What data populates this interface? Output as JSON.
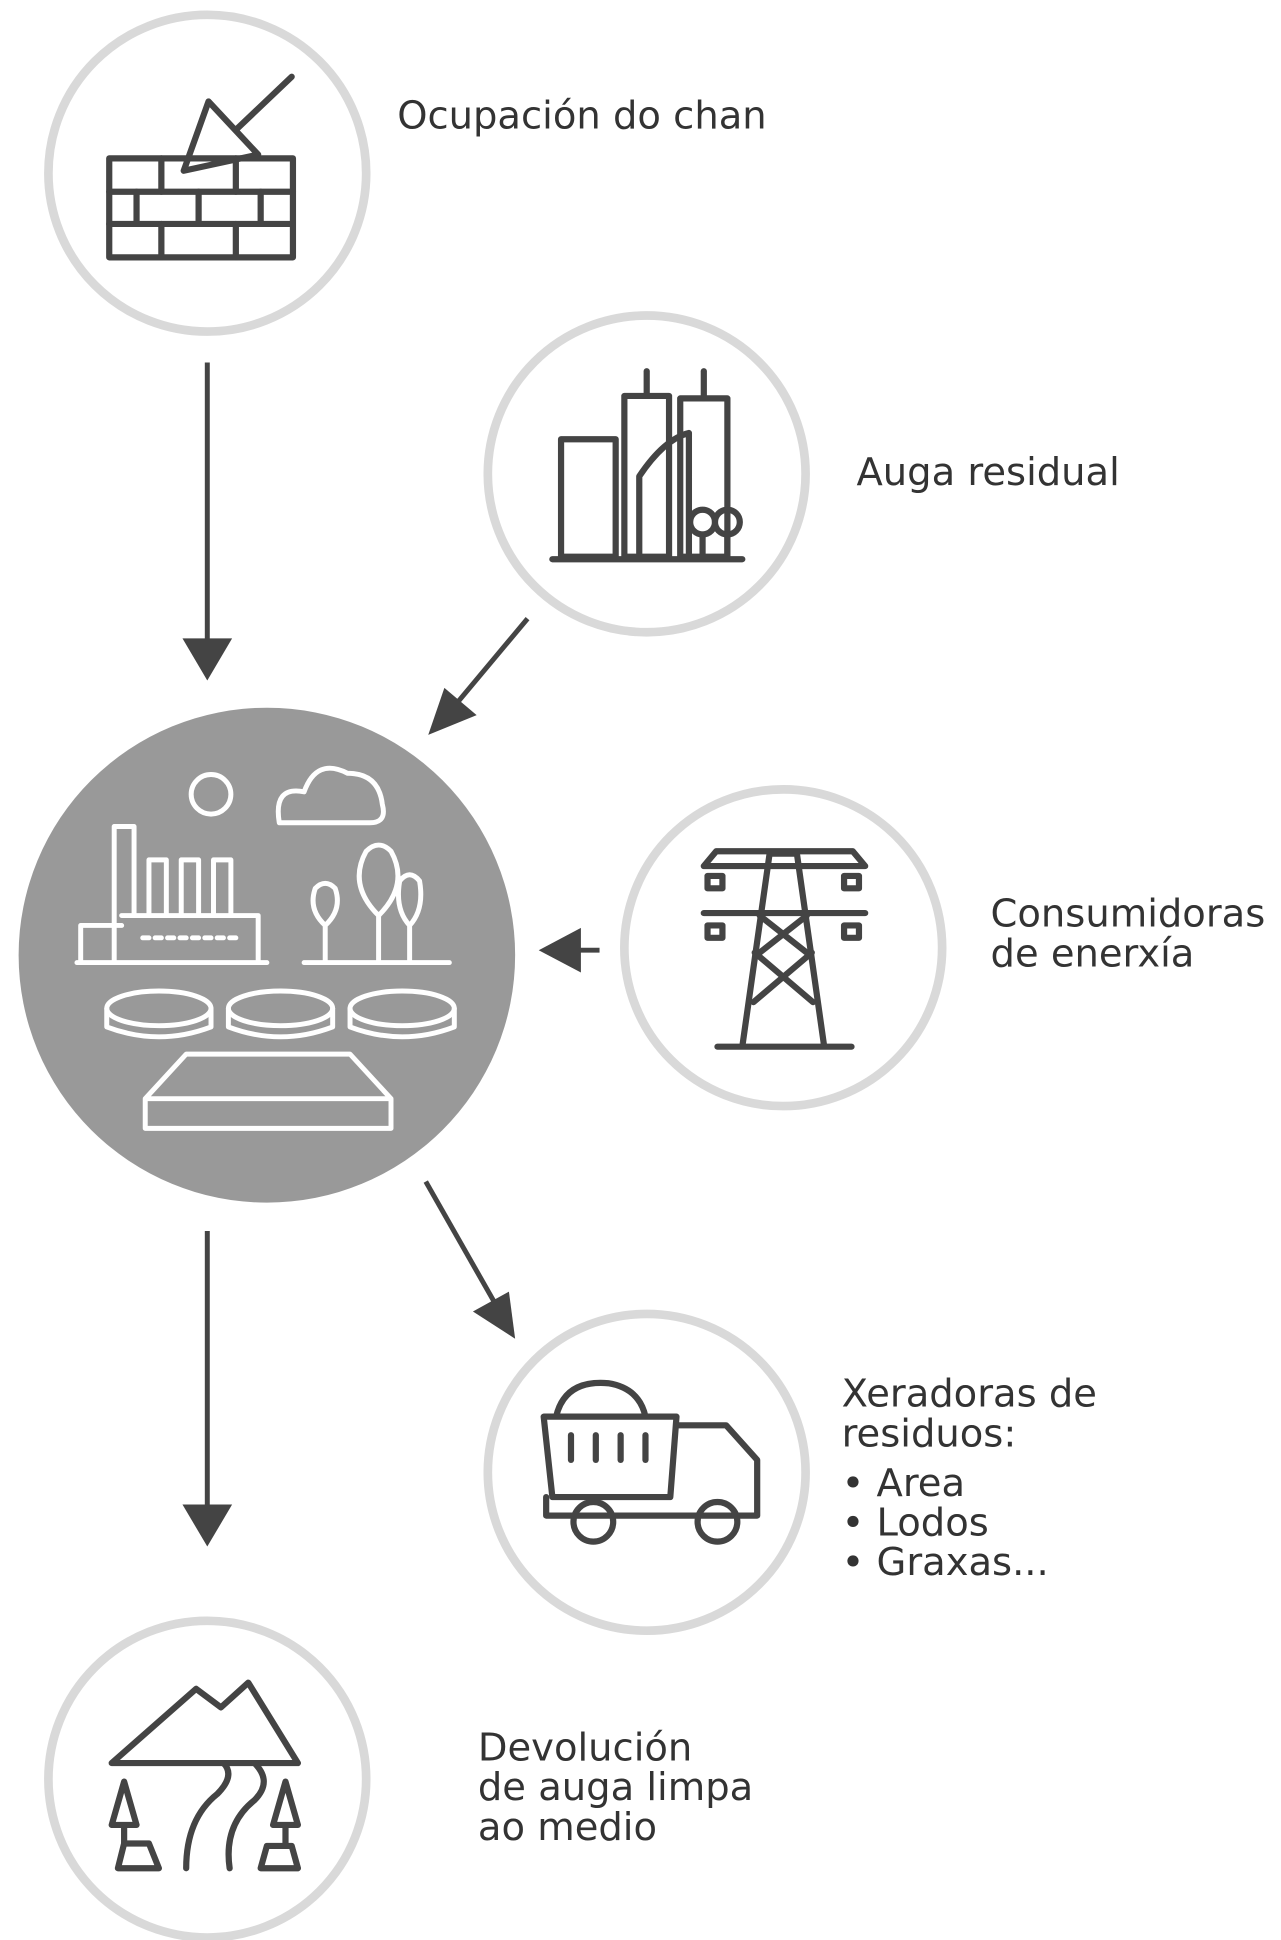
{
  "nodes": [
    {
      "label": [
        "Ocupación do chan"
      ]
    },
    {
      "label": [
        "Auga residual"
      ]
    },
    {
      "label": [
        "Consumidoras",
        "de enerxía"
      ]
    },
    {
      "label": [
        "Xeradoras de",
        "residuos:"
      ],
      "items": [
        "• Area",
        "• Lodos",
        "• Graxas..."
      ]
    },
    {
      "label": [
        "Devolución",
        "de auga limpa",
        "ao medio"
      ]
    }
  ]
}
